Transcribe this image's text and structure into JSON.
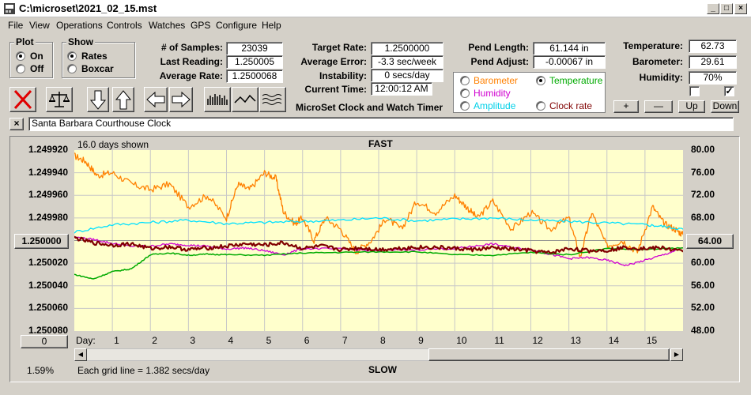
{
  "window": {
    "title": "C:\\microset\\2021_02_15.mst"
  },
  "menu": [
    "File",
    "View",
    "Operations",
    "Controls",
    "Watches",
    "GPS",
    "Configure",
    "Help"
  ],
  "plot_group": {
    "title": "Plot",
    "on": "On",
    "off": "Off",
    "selected": "On"
  },
  "show_group": {
    "title": "Show",
    "rates": "Rates",
    "boxcar": "Boxcar",
    "selected": "Rates"
  },
  "stats": {
    "samples_label": "# of Samples:",
    "samples": "23039",
    "last_label": "Last Reading:",
    "last": "1.250005",
    "avg_label": "Average Rate:",
    "avg": "1.2500068"
  },
  "target": {
    "rate_label": "Target Rate:",
    "rate": "1.2500000",
    "error_label": "Average Error:",
    "error": "-3.3 sec/week",
    "instab_label": "Instability:",
    "instab": "0 secs/day",
    "time_label": "Current Time:",
    "time": "12:00:12 AM"
  },
  "pend": {
    "length_label": "Pend Length:",
    "length": "61.144 in",
    "adjust_label": "Pend Adjust:",
    "adjust": "-0.00067 in"
  },
  "env": {
    "temp_label": "Temperature:",
    "temp": "62.73",
    "baro_label": "Barometer:",
    "baro": "29.61",
    "hum_label": "Humidity:",
    "hum": "70%"
  },
  "series_select": {
    "barometer": "Barometer",
    "temperature": "Temperature",
    "humidity": "Humidity",
    "amplitude": "Amplitude",
    "clock_rate": "Clock rate",
    "selected": "Temperature"
  },
  "app_caption": "MicroSet Clock and Watch Timer",
  "right_buttons": {
    "plus": "+",
    "minus": "—",
    "up": "Up",
    "down": "Down"
  },
  "checkbox2": "✓",
  "clock_name": "Santa Barbara Courthouse Clock",
  "close_x": "×",
  "colors": {
    "barometer": "#ff8000",
    "temperature": "#00aa00",
    "humidity": "#d000d0",
    "amplitude": "#00e0ff",
    "clock_rate": "#800000",
    "plot_bg": "#ffffcc"
  },
  "chart_data": {
    "type": "line",
    "top_note": "16.0 days shown",
    "top_label": "FAST",
    "bottom_label": "SLOW",
    "footer_note": "Each grid line = 1.382 secs/day",
    "left_button": "1.250000",
    "right_button": "64.00",
    "zero_button": "0",
    "left_status": "1.59%",
    "x_label": "Day:",
    "x_ticks": [
      "1",
      "2",
      "3",
      "4",
      "5",
      "6",
      "7",
      "8",
      "9",
      "10",
      "11",
      "12",
      "13",
      "14",
      "15"
    ],
    "y_left_ticks": [
      "1.249920",
      "1.249940",
      "1.249960",
      "1.249980",
      "1.250000",
      "1.250020",
      "1.250040",
      "1.250060",
      "1.250080"
    ],
    "y_right_ticks": [
      "80.00",
      "76.00",
      "72.00",
      "68.00",
      "64.00",
      "60.00",
      "56.00",
      "52.00",
      "48.00"
    ],
    "y_left_range": [
      1.24992,
      1.25008
    ],
    "y_right_range": [
      80,
      48
    ],
    "x_range": [
      0,
      16
    ],
    "grid": true,
    "series": [
      {
        "key": "barometer",
        "x": [
          0,
          0.3,
          0.6,
          1,
          1.5,
          2,
          2.5,
          3,
          3.5,
          4,
          4.3,
          4.6,
          5,
          5.3,
          5.5,
          5.8,
          6,
          6.3,
          6.6,
          7,
          7.4,
          7.8,
          8.2,
          8.6,
          9,
          9.5,
          10,
          10.3,
          10.6,
          11,
          11.5,
          12,
          12.5,
          13,
          13.3,
          13.6,
          14,
          14.4,
          14.8,
          15.2,
          15.5,
          15.8,
          16
        ],
        "y": [
          79,
          78,
          75.5,
          76,
          74,
          73,
          74,
          70,
          72,
          68,
          74,
          73,
          76,
          75,
          69,
          67,
          68,
          64,
          68,
          66,
          62,
          64,
          68,
          66,
          71,
          69,
          72,
          70,
          68,
          71,
          66,
          69,
          66,
          68,
          61,
          69,
          63,
          64,
          62,
          70,
          67,
          66,
          65
        ]
      },
      {
        "key": "amplitude",
        "x": [
          0,
          1,
          2,
          3,
          4,
          5,
          6,
          7,
          8,
          9,
          10,
          11,
          12,
          13,
          14,
          15,
          15.5,
          16
        ],
        "y": [
          65.5,
          66.8,
          67.2,
          67.6,
          67,
          67.2,
          67.4,
          67.6,
          68,
          67.5,
          67.8,
          68,
          67.6,
          67.4,
          67.1,
          66.8,
          66.5,
          66
        ]
      },
      {
        "key": "humidity",
        "x": [
          0,
          0.5,
          1,
          1.5,
          2,
          2.5,
          3,
          3.5,
          4,
          4.5,
          5,
          5.5,
          6,
          7,
          8,
          9,
          10,
          10.5,
          11,
          11.5,
          12,
          12.5,
          13,
          13.5,
          14,
          14.5,
          15,
          15.5,
          16
        ],
        "y": [
          64.6,
          64.2,
          63.5,
          63,
          63,
          63.4,
          63.2,
          63,
          62.5,
          62.7,
          62.2,
          61.5,
          62.6,
          62.5,
          62.2,
          62.4,
          62.6,
          63,
          63.4,
          62.8,
          62.4,
          61.6,
          60.8,
          61,
          60.5,
          59.6,
          60.5,
          61.5,
          62.7
        ]
      },
      {
        "key": "temperature",
        "x": [
          0,
          0.5,
          1,
          1.5,
          2,
          2.5,
          3,
          3.5,
          4,
          5,
          6,
          7,
          8,
          9,
          10,
          11,
          12,
          13,
          14,
          15,
          16
        ],
        "y": [
          58,
          57.2,
          58.5,
          59,
          61.5,
          61.8,
          61.4,
          61.6,
          61.5,
          61.4,
          61.8,
          61.9,
          62,
          62,
          61.5,
          61.4,
          61.9,
          61.5,
          62.6,
          62.4,
          62.7
        ]
      },
      {
        "key": "clock_rate",
        "x": [
          0,
          0.5,
          1,
          1.5,
          2,
          2.5,
          3,
          3.5,
          4,
          4.5,
          5,
          5.5,
          6,
          6.5,
          7,
          7.5,
          8,
          8.5,
          9,
          9.5,
          10,
          10.5,
          11,
          11.5,
          12,
          12.5,
          13,
          13.5,
          14,
          14.5,
          15,
          15.5,
          16
        ],
        "y": [
          64.5,
          63.6,
          63.2,
          63.4,
          62.6,
          62.9,
          62.4,
          62.7,
          63,
          63.4,
          63.2,
          63.6,
          62.6,
          63,
          62.4,
          62.7,
          62.4,
          62.6,
          62.8,
          62.8,
          62.6,
          62.4,
          62.7,
          62.5,
          62.2,
          61.8,
          62.6,
          62.2,
          62.3,
          62.8,
          62.6,
          62.7,
          62
        ]
      }
    ]
  }
}
